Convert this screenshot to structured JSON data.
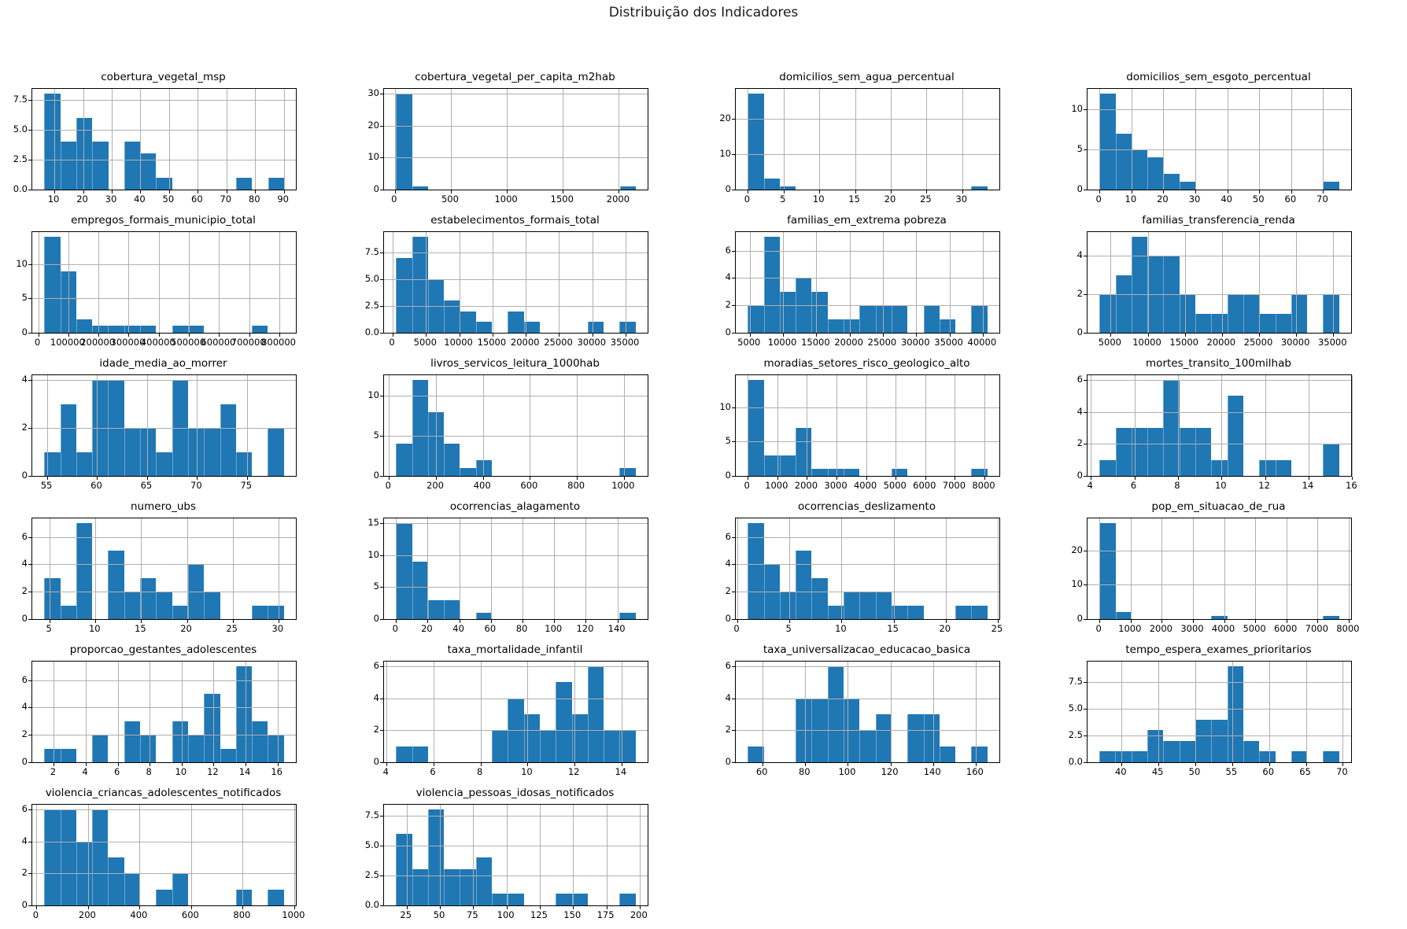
{
  "figure": {
    "title": "Distribuição dos Indicadores"
  },
  "colors": {
    "bar": "#1f77b4",
    "grid": "#b0b0b0",
    "spine": "#000000",
    "background": "#ffffff"
  },
  "layout": {
    "rows": 6,
    "cols": 4,
    "grid_on": true,
    "legend": "none"
  },
  "chart_data": [
    {
      "type": "bar",
      "title": "cobertura_vegetal_msp",
      "xlim": [
        2.3,
        94.2
      ],
      "xticks": [
        10,
        20,
        30,
        40,
        50,
        60,
        70,
        80,
        90
      ],
      "xtick_labels": [
        "10",
        "20",
        "30",
        "40",
        "50",
        "60",
        "70",
        "80",
        "90"
      ],
      "yticks": [
        0,
        2.5,
        5,
        7.5
      ],
      "ytick_labels": [
        "0.0",
        "2.5",
        "5.0",
        "7.5"
      ],
      "ymax": 8.4,
      "bin_start": 6.5,
      "bin_width": 5.57,
      "counts": [
        8,
        4,
        6,
        4,
        0,
        4,
        3,
        1,
        0,
        0,
        0,
        0,
        1,
        0,
        1
      ]
    },
    {
      "type": "bar",
      "title": "cobertura_vegetal_per_capita_m2hab",
      "xlim": [
        -97,
        2257
      ],
      "xticks": [
        0,
        500,
        1000,
        1500,
        2000
      ],
      "xtick_labels": [
        "0",
        "500",
        "1000",
        "1500",
        "2000"
      ],
      "yticks": [
        0,
        10,
        20,
        30
      ],
      "ytick_labels": [
        "0",
        "10",
        "20",
        "30"
      ],
      "ymax": 31.5,
      "bin_start": 10,
      "bin_width": 142.7,
      "counts": [
        30,
        1,
        0,
        0,
        0,
        0,
        0,
        0,
        0,
        0,
        0,
        0,
        0,
        0,
        1
      ]
    },
    {
      "type": "bar",
      "title": "domicilios_sem_agua_percentual",
      "xlim": [
        -1.7,
        35.2
      ],
      "xticks": [
        0,
        5,
        10,
        15,
        20,
        25,
        30
      ],
      "xtick_labels": [
        "0",
        "5",
        "10",
        "15",
        "20",
        "25",
        "30"
      ],
      "yticks": [
        0,
        10,
        20
      ],
      "ytick_labels": [
        "0",
        "10",
        "20"
      ],
      "ymax": 28.35,
      "bin_start": 0,
      "bin_width": 2.233,
      "counts": [
        27,
        3,
        1,
        0,
        0,
        0,
        0,
        0,
        0,
        0,
        0,
        0,
        0,
        0,
        1
      ]
    },
    {
      "type": "bar",
      "title": "domicilios_sem_esgoto_percentual",
      "xlim": [
        -3.75,
        78.75
      ],
      "xticks": [
        0,
        10,
        20,
        30,
        40,
        50,
        60,
        70
      ],
      "xtick_labels": [
        "0",
        "10",
        "20",
        "30",
        "40",
        "50",
        "60",
        "70"
      ],
      "yticks": [
        0,
        5,
        10
      ],
      "ytick_labels": [
        "0",
        "5",
        "10"
      ],
      "ymax": 12.6,
      "bin_start": 0,
      "bin_width": 5,
      "counts": [
        12,
        7,
        5,
        4,
        2,
        1,
        0,
        0,
        0,
        0,
        0,
        0,
        0,
        0,
        1
      ]
    },
    {
      "type": "bar",
      "title": "empregos_formais_municipio_total",
      "xlim": [
        -19750,
        854750
      ],
      "xticks": [
        0,
        100000,
        200000,
        300000,
        400000,
        500000,
        600000,
        700000,
        800000
      ],
      "xtick_labels": [
        "0",
        "100000",
        "200000",
        "300000",
        "400000",
        "500000",
        "600000",
        "700000",
        "800000"
      ],
      "yticks": [
        0,
        5,
        10
      ],
      "ytick_labels": [
        "0",
        "5",
        "10"
      ],
      "ymax": 14.7,
      "bin_start": 20000,
      "bin_width": 53000,
      "counts": [
        14,
        9,
        2,
        1,
        1,
        1,
        1,
        0,
        1,
        1,
        0,
        0,
        0,
        1,
        0
      ]
    },
    {
      "type": "bar",
      "title": "estabelecimentos_formais_total",
      "xlim": [
        -1300,
        38300
      ],
      "xticks": [
        0,
        5000,
        10000,
        15000,
        20000,
        25000,
        30000,
        35000
      ],
      "xtick_labels": [
        "0",
        "5000",
        "10000",
        "15000",
        "20000",
        "25000",
        "30000",
        "35000"
      ],
      "yticks": [
        0,
        2.5,
        5,
        7.5
      ],
      "ytick_labels": [
        "0.0",
        "2.5",
        "5.0",
        "7.5"
      ],
      "ymax": 9.45,
      "bin_start": 500,
      "bin_width": 2400,
      "counts": [
        7,
        9,
        5,
        3,
        2,
        1,
        0,
        2,
        1,
        0,
        0,
        0,
        1,
        0,
        1
      ]
    },
    {
      "type": "bar",
      "title": "familias_em_extrema pobreza",
      "xlim": [
        2900,
        42500
      ],
      "xticks": [
        5000,
        10000,
        15000,
        20000,
        25000,
        30000,
        35000,
        40000
      ],
      "xtick_labels": [
        "5000",
        "10000",
        "15000",
        "20000",
        "25000",
        "30000",
        "35000",
        "40000"
      ],
      "yticks": [
        0,
        2,
        4,
        6
      ],
      "ytick_labels": [
        "0",
        "2",
        "4",
        "6"
      ],
      "ymax": 7.35,
      "bin_start": 4700,
      "bin_width": 2400,
      "counts": [
        2,
        7,
        3,
        4,
        3,
        1,
        1,
        2,
        2,
        2,
        0,
        2,
        1,
        0,
        2
      ]
    },
    {
      "type": "bar",
      "title": "familias_transferencia_renda",
      "xlim": [
        1885,
        37410
      ],
      "xticks": [
        5000,
        10000,
        15000,
        20000,
        25000,
        30000,
        35000
      ],
      "xtick_labels": [
        "5000",
        "10000",
        "15000",
        "20000",
        "25000",
        "30000",
        "35000"
      ],
      "yticks": [
        0,
        2,
        4
      ],
      "ytick_labels": [
        "0",
        "2",
        "4"
      ],
      "ymax": 5.25,
      "bin_start": 3500,
      "bin_width": 2153,
      "counts": [
        2,
        3,
        5,
        4,
        4,
        2,
        1,
        1,
        2,
        2,
        1,
        1,
        2,
        0,
        2
      ]
    },
    {
      "type": "bar",
      "title": "idade_media_ao_morrer",
      "xlim": [
        53.5,
        79.9
      ],
      "xticks": [
        55,
        60,
        65,
        70,
        75
      ],
      "xtick_labels": [
        "55",
        "60",
        "65",
        "70",
        "75"
      ],
      "yticks": [
        0,
        2,
        4
      ],
      "ytick_labels": [
        "0",
        "2",
        "4"
      ],
      "ymax": 4.2,
      "bin_start": 54.7,
      "bin_width": 1.6,
      "counts": [
        1,
        3,
        1,
        4,
        4,
        2,
        2,
        1,
        4,
        2,
        2,
        3,
        1,
        0,
        2
      ]
    },
    {
      "type": "bar",
      "title": "livros_servicos_leitura_1000hab",
      "xlim": [
        -21,
        1101
      ],
      "xticks": [
        0,
        200,
        400,
        600,
        800,
        1000
      ],
      "xtick_labels": [
        "0",
        "200",
        "400",
        "600",
        "800",
        "1000"
      ],
      "yticks": [
        0,
        5,
        10
      ],
      "ytick_labels": [
        "0",
        "5",
        "10"
      ],
      "ymax": 12.6,
      "bin_start": 30,
      "bin_width": 68,
      "counts": [
        4,
        12,
        8,
        4,
        1,
        2,
        0,
        0,
        0,
        0,
        0,
        0,
        0,
        0,
        1
      ]
    },
    {
      "type": "bar",
      "title": "moradias_setores_risco_geologico_alto",
      "xlim": [
        -405,
        8505
      ],
      "xticks": [
        0,
        1000,
        2000,
        3000,
        4000,
        5000,
        6000,
        7000,
        8000
      ],
      "xtick_labels": [
        "0",
        "1000",
        "2000",
        "3000",
        "4000",
        "5000",
        "6000",
        "7000",
        "8000"
      ],
      "yticks": [
        0,
        5,
        10
      ],
      "ytick_labels": [
        "0",
        "5",
        "10"
      ],
      "ymax": 14.7,
      "bin_start": 0,
      "bin_width": 540,
      "counts": [
        14,
        3,
        3,
        7,
        1,
        1,
        1,
        0,
        0,
        1,
        0,
        0,
        0,
        0,
        1
      ]
    },
    {
      "type": "bar",
      "title": "mortes_transito_100milhab",
      "xlim": [
        3.85,
        15.95
      ],
      "xticks": [
        4,
        6,
        8,
        10,
        12,
        14,
        16
      ],
      "xtick_labels": [
        "4",
        "6",
        "8",
        "10",
        "12",
        "14",
        "16"
      ],
      "yticks": [
        0,
        2,
        4,
        6
      ],
      "ytick_labels": [
        "0",
        "2",
        "4",
        "6"
      ],
      "ymax": 6.3,
      "bin_start": 4.4,
      "bin_width": 0.7333,
      "counts": [
        1,
        3,
        3,
        3,
        6,
        3,
        3,
        1,
        5,
        0,
        1,
        1,
        0,
        0,
        2
      ]
    },
    {
      "type": "bar",
      "title": "numero_ubs",
      "xlim": [
        3.09,
        31.91
      ],
      "xticks": [
        5,
        10,
        15,
        20,
        25,
        30
      ],
      "xtick_labels": [
        "5",
        "10",
        "15",
        "20",
        "25",
        "30"
      ],
      "yticks": [
        0,
        2,
        4,
        6
      ],
      "ytick_labels": [
        "0",
        "2",
        "4",
        "6"
      ],
      "ymax": 7.35,
      "bin_start": 4.4,
      "bin_width": 1.7467,
      "counts": [
        3,
        1,
        7,
        0,
        5,
        2,
        3,
        2,
        1,
        4,
        2,
        0,
        0,
        1,
        1
      ]
    },
    {
      "type": "bar",
      "title": "ocorrencias_alagamento",
      "xlim": [
        -7.58,
        159.08
      ],
      "xticks": [
        0,
        20,
        40,
        60,
        80,
        100,
        120,
        140
      ],
      "xtick_labels": [
        "0",
        "20",
        "40",
        "60",
        "80",
        "100",
        "120",
        "140"
      ],
      "yticks": [
        0,
        5,
        10,
        15
      ],
      "ytick_labels": [
        "0",
        "5",
        "10",
        "15"
      ],
      "ymax": 15.75,
      "bin_start": 0,
      "bin_width": 10.1,
      "counts": [
        15,
        9,
        3,
        3,
        0,
        1,
        0,
        0,
        0,
        0,
        0,
        0,
        0,
        0,
        1
      ]
    },
    {
      "type": "bar",
      "title": "ocorrencias_deslizamento",
      "xlim": [
        -0.15,
        25.15
      ],
      "xticks": [
        0,
        5,
        10,
        15,
        20,
        25
      ],
      "xtick_labels": [
        "0",
        "5",
        "10",
        "15",
        "20",
        "25"
      ],
      "yticks": [
        0,
        2,
        4,
        6
      ],
      "ytick_labels": [
        "0",
        "2",
        "4",
        "6"
      ],
      "ymax": 7.35,
      "bin_start": 1,
      "bin_width": 1.5333,
      "counts": [
        7,
        4,
        2,
        5,
        3,
        1,
        2,
        2,
        2,
        1,
        1,
        0,
        0,
        1,
        1
      ]
    },
    {
      "type": "bar",
      "title": "pop_em_situacao_de_rua",
      "xlim": [
        -384.75,
        8079.75
      ],
      "xticks": [
        0,
        1000,
        2000,
        3000,
        4000,
        5000,
        6000,
        7000,
        8000
      ],
      "xtick_labels": [
        "0",
        "1000",
        "2000",
        "3000",
        "4000",
        "5000",
        "6000",
        "7000",
        "8000"
      ],
      "yticks": [
        0,
        10,
        20
      ],
      "ytick_labels": [
        "0",
        "10",
        "20"
      ],
      "ymax": 29.4,
      "bin_start": 0,
      "bin_width": 513,
      "counts": [
        28,
        2,
        0,
        0,
        0,
        0,
        0,
        1,
        0,
        0,
        0,
        0,
        0,
        0,
        1
      ]
    },
    {
      "type": "bar",
      "title": "proporcao_gestantes_adolescentes",
      "xlim": [
        0.65,
        17.15
      ],
      "xticks": [
        2,
        4,
        6,
        8,
        10,
        12,
        14,
        16
      ],
      "xtick_labels": [
        "2",
        "4",
        "6",
        "8",
        "10",
        "12",
        "14",
        "16"
      ],
      "yticks": [
        0,
        2,
        4,
        6
      ],
      "ytick_labels": [
        "0",
        "2",
        "4",
        "6"
      ],
      "ymax": 7.35,
      "bin_start": 1.4,
      "bin_width": 1.0,
      "counts": [
        1,
        1,
        0,
        2,
        0,
        3,
        2,
        0,
        3,
        2,
        5,
        1,
        7,
        3,
        2
      ]
    },
    {
      "type": "bar",
      "title": "taxa_mortalidade_infantil",
      "xlim": [
        3.89,
        15.11
      ],
      "xticks": [
        4,
        6,
        8,
        10,
        12,
        14
      ],
      "xtick_labels": [
        "4",
        "6",
        "8",
        "10",
        "12",
        "14"
      ],
      "yticks": [
        0,
        2,
        4,
        6
      ],
      "ytick_labels": [
        "0",
        "2",
        "4",
        "6"
      ],
      "ymax": 6.3,
      "bin_start": 4.4,
      "bin_width": 0.68,
      "counts": [
        1,
        1,
        0,
        0,
        0,
        0,
        2,
        4,
        3,
        2,
        5,
        3,
        6,
        2,
        2
      ]
    },
    {
      "type": "bar",
      "title": "taxa_universalizacao_educacao_basica",
      "xlim": [
        47.38,
        171.13
      ],
      "xticks": [
        60,
        80,
        100,
        120,
        140,
        160
      ],
      "xtick_labels": [
        "60",
        "80",
        "100",
        "120",
        "140",
        "160"
      ],
      "yticks": [
        0,
        2,
        4,
        6
      ],
      "ytick_labels": [
        "0",
        "2",
        "4",
        "6"
      ],
      "ymax": 6.3,
      "bin_start": 53,
      "bin_width": 7.5,
      "counts": [
        1,
        0,
        0,
        4,
        4,
        6,
        4,
        2,
        3,
        0,
        3,
        3,
        1,
        0,
        1
      ]
    },
    {
      "type": "bar",
      "title": "tempo_espera_exames_prioritarios",
      "xlim": [
        35.38,
        71.13
      ],
      "xticks": [
        40,
        45,
        50,
        55,
        60,
        65,
        70
      ],
      "xtick_labels": [
        "40",
        "45",
        "50",
        "55",
        "60",
        "65",
        "70"
      ],
      "yticks": [
        0,
        2.5,
        5,
        7.5
      ],
      "ytick_labels": [
        "0.0",
        "2.5",
        "5.0",
        "7.5"
      ],
      "ymax": 9.45,
      "bin_start": 37,
      "bin_width": 2.1667,
      "counts": [
        1,
        1,
        1,
        3,
        2,
        2,
        4,
        4,
        9,
        2,
        1,
        0,
        1,
        0,
        1
      ]
    },
    {
      "type": "bar",
      "title": "violencia_criancas_adolescentes_notificados",
      "xlim": [
        -16.5,
        1006.5
      ],
      "xticks": [
        0,
        200,
        400,
        600,
        800,
        1000
      ],
      "xtick_labels": [
        "0",
        "200",
        "400",
        "600",
        "800",
        "1000"
      ],
      "yticks": [
        0,
        2,
        4,
        6
      ],
      "ytick_labels": [
        "0",
        "2",
        "4",
        "6"
      ],
      "ymax": 6.3,
      "bin_start": 30,
      "bin_width": 62,
      "counts": [
        6,
        6,
        4,
        6,
        3,
        2,
        0,
        1,
        2,
        0,
        0,
        0,
        1,
        0,
        1
      ]
    },
    {
      "type": "bar",
      "title": "violencia_pessoas_idosas_notificados",
      "xlim": [
        8,
        206
      ],
      "xticks": [
        25,
        50,
        75,
        100,
        125,
        150,
        175,
        200
      ],
      "xtick_labels": [
        "25",
        "50",
        "75",
        "100",
        "125",
        "150",
        "175",
        "200"
      ],
      "yticks": [
        0,
        2.5,
        5,
        7.5
      ],
      "ytick_labels": [
        "0.0",
        "2.5",
        "5.0",
        "7.5"
      ],
      "ymax": 8.4,
      "bin_start": 17,
      "bin_width": 12,
      "counts": [
        6,
        3,
        8,
        3,
        3,
        4,
        1,
        1,
        0,
        0,
        1,
        1,
        0,
        0,
        1
      ]
    }
  ]
}
